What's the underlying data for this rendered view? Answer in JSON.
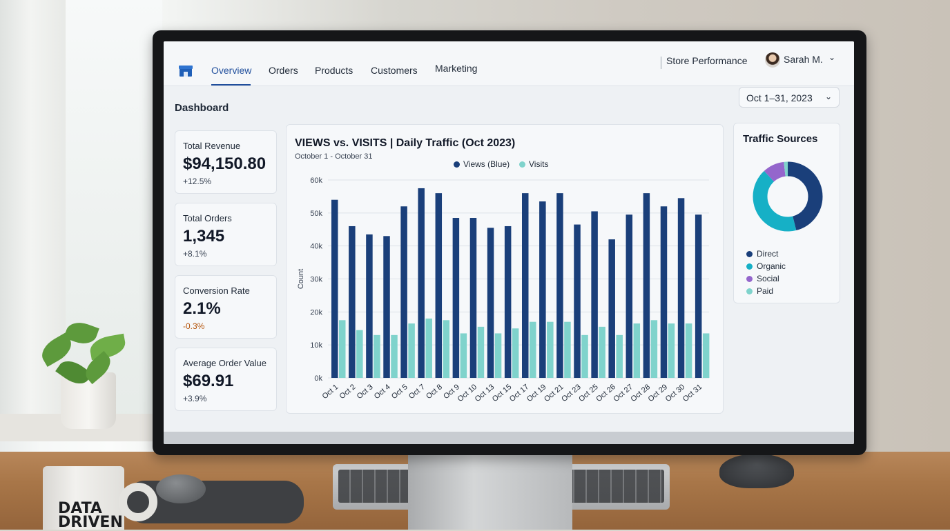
{
  "nav": {
    "tabs": [
      {
        "label": "Overview",
        "active": true
      },
      {
        "label": "Orders"
      },
      {
        "label": "Products"
      },
      {
        "label": "Customers"
      },
      {
        "label": "Marketing"
      }
    ],
    "store_label": "Store Performance",
    "user_name": "Sarah M.",
    "logo_icon": "store-icon",
    "chevron_icon": "chevron-down-icon"
  },
  "page": {
    "title": "Dashboard",
    "date_range": "Oct 1–31, 2023"
  },
  "kpis": [
    {
      "label": "Total Revenue",
      "value": "$94,150.80",
      "delta": "+12.5%",
      "trend": "up"
    },
    {
      "label": "Total Orders",
      "value": "1,345",
      "delta": "+8.1%",
      "trend": "up"
    },
    {
      "label": "Conversion Rate",
      "value": "2.1%",
      "delta": "-0.3%",
      "trend": "down"
    },
    {
      "label": "Average Order Value",
      "value": "$69.91",
      "delta": "+3.9%",
      "trend": "up"
    }
  ],
  "traffic": {
    "title": "Traffic Sources",
    "items": [
      {
        "label": "Direct",
        "color": "#1a3f7a"
      },
      {
        "label": "Organic",
        "color": "#16b0c6"
      },
      {
        "label": "Social",
        "color": "#9466cc"
      },
      {
        "label": "Paid",
        "color": "#7fd3cc"
      }
    ]
  },
  "mug_text": "DATA DRIVEN",
  "chart_data": [
    {
      "type": "bar",
      "title": "VIEWS vs. VISITS | Daily Traffic (Oct 2023)",
      "subtitle": "October 1 - October 31",
      "ylabel": "Count",
      "ylim": [
        0,
        60000
      ],
      "yticks": [
        "0k",
        "10k",
        "20k",
        "30k",
        "40k",
        "50k",
        "60k"
      ],
      "grid": true,
      "legend_position": "top",
      "categories": [
        "Oct 1",
        "Oct 2",
        "Oct 3",
        "Oct 4",
        "Oct 5",
        "Oct 7",
        "Oct 8",
        "Oct 9",
        "Oct 10",
        "Oct 13",
        "Oct 15",
        "Oct 17",
        "Oct 19",
        "Oct 21",
        "Oct 23",
        "Oct 25",
        "Oct 26",
        "Oct 27",
        "Oct 28",
        "Oct 29",
        "Oct 30",
        "Oct 31"
      ],
      "series": [
        {
          "name": "Views (Blue)",
          "color": "#1a3f7a",
          "values": [
            54000,
            46000,
            43500,
            43000,
            52000,
            57500,
            56000,
            48500,
            48500,
            45500,
            46000,
            56000,
            53500,
            56000,
            46500,
            50500,
            42000,
            49500,
            56000,
            52000,
            54500,
            49500
          ]
        },
        {
          "name": "Visits",
          "color": "#7fd3cc",
          "values": [
            17500,
            14500,
            13000,
            13000,
            16500,
            18000,
            17500,
            13500,
            15500,
            13500,
            15000,
            17000,
            17000,
            17000,
            13000,
            15500,
            13000,
            16500,
            17500,
            16500,
            16500,
            13500
          ]
        }
      ]
    },
    {
      "type": "pie",
      "title": "Traffic Sources",
      "donut": true,
      "labels": [
        "Direct",
        "Organic",
        "Social",
        "Paid"
      ],
      "values": [
        46,
        42,
        10,
        2
      ],
      "colors": [
        "#1a3f7a",
        "#16b0c6",
        "#9466cc",
        "#7fd3cc"
      ]
    }
  ]
}
